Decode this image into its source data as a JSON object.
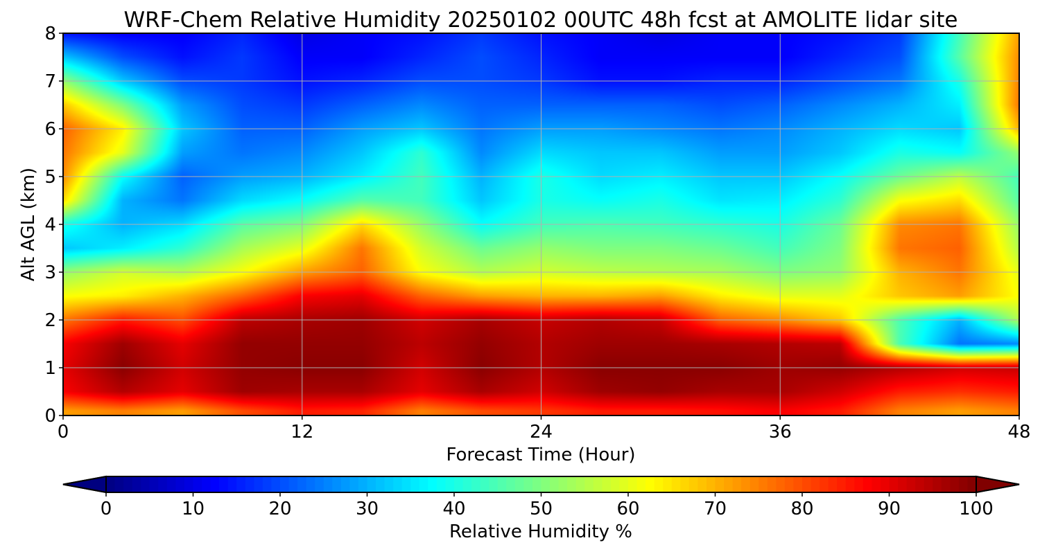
{
  "chart_data": {
    "type": "heatmap",
    "title": "WRF-Chem Relative Humidity 20250102 00UTC 48h fcst at AMOLITE lidar site",
    "xlabel": "Forecast Time (Hour)",
    "ylabel": "Alt AGL (km)",
    "xlim": [
      0,
      48
    ],
    "ylim": [
      0,
      8
    ],
    "x_ticks": [
      0,
      12,
      24,
      36,
      48
    ],
    "y_ticks": [
      0,
      1,
      2,
      3,
      4,
      5,
      6,
      7,
      8
    ],
    "grid": true,
    "x": [
      0,
      3,
      6,
      9,
      12,
      15,
      18,
      21,
      24,
      27,
      30,
      33,
      36,
      39,
      42,
      45,
      48
    ],
    "y": [
      0.1,
      0.5,
      1.0,
      1.5,
      2.0,
      2.5,
      3.0,
      3.5,
      4.0,
      4.5,
      5.0,
      5.5,
      6.0,
      6.5,
      7.0,
      7.5,
      8.0
    ],
    "z": [
      [
        72,
        75,
        72,
        80,
        85,
        84,
        75,
        80,
        82,
        85,
        85,
        86,
        88,
        85,
        75,
        72,
        75
      ],
      [
        88,
        95,
        90,
        97,
        96,
        96,
        90,
        96,
        92,
        97,
        98,
        96,
        96,
        92,
        85,
        83,
        85
      ],
      [
        90,
        99,
        92,
        98,
        99,
        99,
        92,
        99,
        95,
        99,
        99,
        99,
        97,
        98,
        95,
        92,
        93
      ],
      [
        88,
        97,
        90,
        98,
        98,
        98,
        94,
        98,
        95,
        97,
        97,
        96,
        95,
        94,
        45,
        24,
        26
      ],
      [
        76,
        85,
        80,
        94,
        96,
        97,
        92,
        96,
        93,
        95,
        93,
        78,
        74,
        68,
        45,
        30,
        55
      ],
      [
        62,
        64,
        70,
        78,
        88,
        90,
        78,
        72,
        70,
        70,
        72,
        64,
        60,
        60,
        68,
        72,
        62
      ],
      [
        52,
        58,
        55,
        62,
        72,
        78,
        62,
        55,
        58,
        56,
        55,
        54,
        50,
        52,
        70,
        76,
        60
      ],
      [
        32,
        36,
        42,
        54,
        60,
        76,
        58,
        48,
        52,
        50,
        50,
        48,
        44,
        50,
        76,
        78,
        55
      ],
      [
        40,
        30,
        34,
        46,
        50,
        66,
        52,
        38,
        44,
        45,
        44,
        42,
        40,
        48,
        74,
        76,
        52
      ],
      [
        66,
        30,
        24,
        34,
        38,
        46,
        44,
        32,
        40,
        38,
        40,
        35,
        36,
        42,
        62,
        66,
        46
      ],
      [
        74,
        38,
        22,
        28,
        30,
        36,
        44,
        30,
        40,
        34,
        36,
        32,
        32,
        38,
        48,
        56,
        44
      ],
      [
        76,
        60,
        28,
        24,
        26,
        32,
        42,
        26,
        34,
        32,
        32,
        28,
        28,
        32,
        40,
        38,
        52
      ],
      [
        78,
        64,
        32,
        22,
        22,
        28,
        32,
        24,
        28,
        28,
        26,
        24,
        26,
        30,
        34,
        32,
        70
      ],
      [
        68,
        50,
        28,
        20,
        18,
        22,
        26,
        22,
        22,
        22,
        22,
        20,
        22,
        26,
        30,
        36,
        76
      ],
      [
        52,
        32,
        20,
        18,
        14,
        16,
        20,
        20,
        18,
        14,
        14,
        16,
        16,
        20,
        24,
        40,
        75
      ],
      [
        32,
        20,
        14,
        18,
        12,
        12,
        16,
        20,
        16,
        12,
        12,
        12,
        12,
        16,
        20,
        46,
        74
      ],
      [
        14,
        12,
        12,
        16,
        10,
        12,
        14,
        18,
        14,
        12,
        10,
        12,
        12,
        14,
        18,
        44,
        72
      ]
    ],
    "colorbar": {
      "label": "Relative Humidity %",
      "range": [
        0,
        100
      ],
      "ticks": [
        0,
        10,
        20,
        30,
        40,
        50,
        60,
        70,
        80,
        90,
        100
      ],
      "extend": "both",
      "colormap": "jet"
    }
  }
}
